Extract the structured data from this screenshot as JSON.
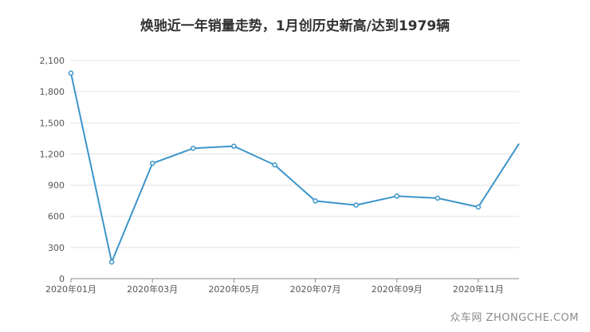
{
  "chart_data": {
    "type": "line",
    "title": "焕驰近一年销量走势，1月创历史新高/达到1979辆",
    "x": [
      "2020年01月",
      "2020年02月",
      "2020年03月",
      "2020年04月",
      "2020年05月",
      "2020年06月",
      "2020年07月",
      "2020年08月",
      "2020年09月",
      "2020年10月",
      "2020年11月",
      "2020年12月"
    ],
    "xtick_labels": [
      "2020年01月",
      "2020年03月",
      "2020年05月",
      "2020年07月",
      "2020年09月",
      "2020年11月"
    ],
    "series": [
      {
        "values": [
          1979,
          160,
          1110,
          1255,
          1275,
          1095,
          748,
          708,
          795,
          775,
          690,
          1300
        ]
      }
    ],
    "ylim": [
      0,
      2100
    ],
    "yticks": [
      0,
      300,
      600,
      900,
      1200,
      1500,
      1800,
      2100
    ],
    "ytick_labels": [
      "0",
      "300",
      "600",
      "900",
      "1,200",
      "1,500",
      "1,800",
      "2,100"
    ],
    "xlabel": "",
    "ylabel": "",
    "grid": true,
    "line_color": "#3b95c9"
  },
  "watermark": "众车网 ZHONGCHE.COM"
}
